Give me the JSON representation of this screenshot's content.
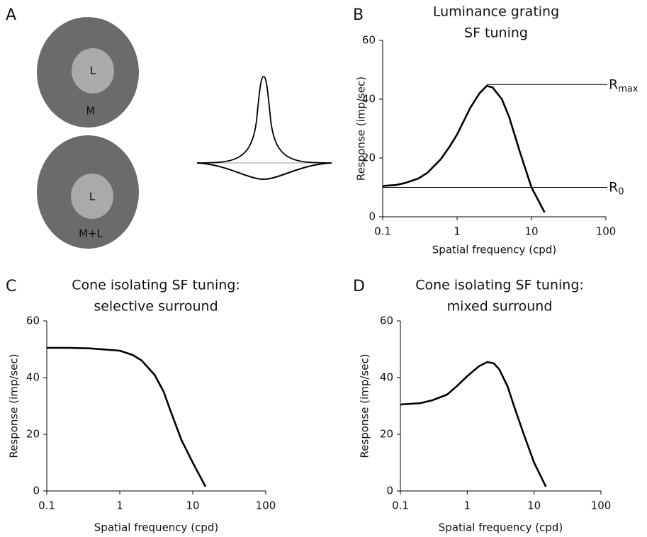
{
  "panel_labels": [
    "A",
    "B",
    "C",
    "D"
  ],
  "diagram": {
    "center_labels": [
      "L",
      "L"
    ],
    "surround_labels": [
      "M",
      "M+L"
    ]
  },
  "chart_data": [
    {
      "type": "line",
      "title": [
        "Luminance grating",
        "SF tuning"
      ],
      "x_label": "Spatial frequency (cpd)",
      "y_label": "Response (imp/sec)",
      "x": [
        0.1,
        0.15,
        0.2,
        0.3,
        0.4,
        0.6,
        0.8,
        1,
        1.5,
        2,
        2.5,
        3,
        4,
        5,
        7,
        10,
        15
      ],
      "series": [
        {
          "color": "#000000",
          "values": [
            10.5,
            10.8,
            11.5,
            13,
            15,
            19.5,
            24,
            28,
            37,
            42,
            44.5,
            44,
            40,
            34,
            22,
            10,
            1.5
          ]
        }
      ],
      "xlim": [
        0.1,
        100
      ],
      "xticks": [
        0.1,
        1,
        10,
        100
      ],
      "xscale": "log",
      "ylim": [
        0,
        60
      ],
      "yticks": [
        0,
        20,
        40,
        60
      ],
      "annotations": [
        {
          "text": "R",
          "sub": "max",
          "value": 45
        },
        {
          "text": "R",
          "sub": "0",
          "value": 10
        }
      ]
    },
    {
      "type": "line",
      "title": [
        "Cone isolating SF tuning:",
        "selective surround"
      ],
      "x_label": "Spatial frequency (cpd)",
      "y_label": "Response (imp/sec)",
      "x": [
        0.1,
        0.2,
        0.4,
        1,
        1.5,
        2,
        3,
        4,
        5,
        7,
        10,
        15
      ],
      "series": [
        {
          "color": "#000000",
          "values": [
            50.5,
            50.5,
            50.3,
            49.5,
            48,
            46,
            41,
            35,
            28,
            18,
            10,
            1.5
          ]
        }
      ],
      "xlim": [
        0.1,
        100
      ],
      "xticks": [
        0.1,
        1,
        10,
        100
      ],
      "xscale": "log",
      "ylim": [
        0,
        60
      ],
      "yticks": [
        0,
        20,
        40,
        60
      ]
    },
    {
      "type": "line",
      "title": [
        "Cone isolating SF tuning:",
        "mixed surround"
      ],
      "x_label": "Spatial frequency (cpd)",
      "y_label": "Response (imp/sec)",
      "x": [
        0.1,
        0.2,
        0.3,
        0.5,
        0.7,
        1,
        1.5,
        2,
        2.5,
        3,
        4,
        5,
        7,
        10,
        15
      ],
      "series": [
        {
          "color": "#000000",
          "values": [
            30.5,
            31,
            32,
            34,
            37,
            40.5,
            44,
            45.5,
            45,
            43,
            37,
            30,
            20,
            10,
            1.5
          ]
        }
      ],
      "xlim": [
        0.1,
        100
      ],
      "xticks": [
        0.1,
        1,
        10,
        100
      ],
      "xscale": "log",
      "ylim": [
        0,
        60
      ],
      "yticks": [
        0,
        20,
        40,
        60
      ]
    }
  ]
}
